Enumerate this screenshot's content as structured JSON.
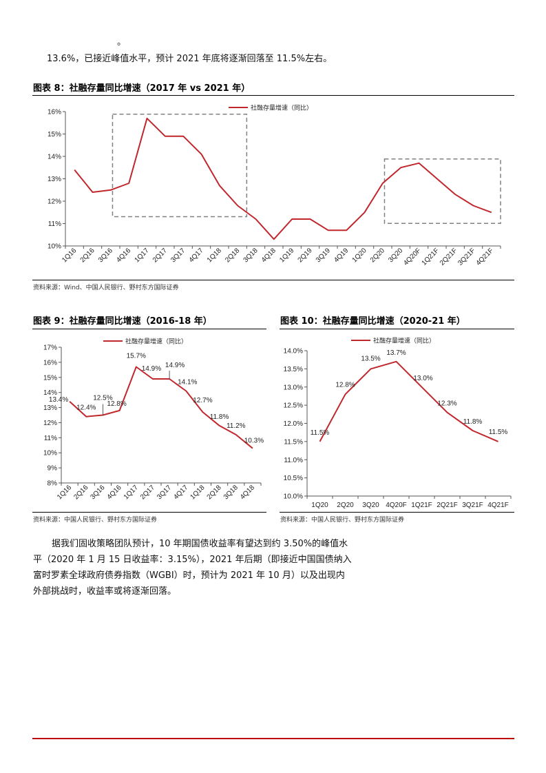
{
  "top_note": {
    "dot": "。",
    "line": "13.6%，已接近峰值水平，预计 2021 年底将逐渐回落至 11.5%左右。"
  },
  "fig8": {
    "title": "图表 8：社融存量同比增速（2017 年 vs 2021 年）",
    "source": "资料来源：Wind、中国人民银行、野村东方国际证券"
  },
  "fig9": {
    "title": "图表 9：社融存量同比增速（2016-18 年）",
    "source": "资料来源：中国人民银行、野村东方国际证券"
  },
  "fig10": {
    "title": "图表 10：社融存量同比增速（2020-21 年）",
    "source": "资料来源：中国人民银行、野村东方国际证券"
  },
  "paragraph": {
    "lines": [
      "据我们固收策略团队预计，10 年期国债收益率有望达到约 3.50%的峰值水",
      "平（2020 年 1 月 15 日收益率：3.15%），2021 年后期（即接近中国国债纳入",
      "富时罗素全球政府债券指数（WGBI）时，预计为 2021 年 10 月）以及出现内",
      "外部挑战时，收益率或将逐渐回落。"
    ]
  },
  "colors": {
    "series": "#c0272d",
    "highlight_box": "#808080",
    "footer_rule": "#c00000"
  },
  "chart_data": [
    {
      "type": "line",
      "categories": [
        "1Q16",
        "2Q16",
        "3Q16",
        "4Q16",
        "1Q17",
        "2Q17",
        "3Q17",
        "4Q17",
        "1Q18",
        "2Q18",
        "3Q18",
        "4Q18",
        "1Q19",
        "2Q19",
        "3Q19",
        "4Q19",
        "1Q20",
        "2Q20",
        "3Q20",
        "4Q20F",
        "1Q21F",
        "2Q21F",
        "3Q21F",
        "4Q21F"
      ],
      "series": [
        {
          "name": "社融存量增速（同比）",
          "values": [
            13.4,
            12.4,
            12.5,
            12.8,
            15.7,
            14.9,
            14.9,
            14.1,
            12.7,
            11.8,
            11.2,
            10.3,
            11.2,
            11.2,
            10.7,
            10.7,
            11.5,
            12.8,
            13.5,
            13.7,
            13.0,
            12.3,
            11.8,
            11.5
          ]
        }
      ],
      "y_ticks": [
        "10%",
        "11%",
        "12%",
        "13%",
        "14%",
        "15%",
        "16%"
      ],
      "ylim": [
        10,
        16
      ],
      "highlight_ranges": [
        [
          "3Q16",
          "2Q18"
        ],
        [
          "2Q20",
          "4Q21F"
        ]
      ],
      "legend": "top-center",
      "grid": false
    },
    {
      "type": "line",
      "categories": [
        "1Q16",
        "2Q16",
        "3Q16",
        "4Q16",
        "1Q17",
        "2Q17",
        "3Q17",
        "4Q17",
        "1Q18",
        "2Q18",
        "3Q18",
        "4Q18"
      ],
      "series": [
        {
          "name": "社融存量增速（同比）",
          "values": [
            13.4,
            12.4,
            12.5,
            12.8,
            15.7,
            14.9,
            14.9,
            14.1,
            12.7,
            11.8,
            11.2,
            10.3
          ]
        }
      ],
      "data_labels": [
        "13.4%",
        "12.4%",
        "12.5%",
        "12.8%",
        "15.7%",
        "14.9%",
        "14.9%",
        "14.1%",
        "12.7%",
        "11.8%",
        "11.2%",
        "10.3%"
      ],
      "y_ticks": [
        "8%",
        "9%",
        "10%",
        "11%",
        "12%",
        "13%",
        "14%",
        "15%",
        "16%",
        "17%"
      ],
      "ylim": [
        8,
        17
      ],
      "legend": "top-center",
      "grid": false
    },
    {
      "type": "line",
      "categories": [
        "1Q20",
        "2Q20",
        "3Q20",
        "4Q20F",
        "1Q21F",
        "2Q21F",
        "3Q21F",
        "4Q21F"
      ],
      "series": [
        {
          "name": "社融存量增速（同比）",
          "values": [
            11.5,
            12.8,
            13.5,
            13.7,
            13.0,
            12.3,
            11.8,
            11.5
          ]
        }
      ],
      "data_labels": [
        "11.5%",
        "12.8%",
        "13.5%",
        "13.7%",
        "13.0%",
        "12.3%",
        "11.8%",
        "11.5%"
      ],
      "y_ticks": [
        "10.0%",
        "10.5%",
        "11.0%",
        "11.5%",
        "12.0%",
        "12.5%",
        "13.0%",
        "13.5%",
        "14.0%"
      ],
      "ylim": [
        10,
        14
      ],
      "legend": "top-center",
      "grid": false
    }
  ]
}
